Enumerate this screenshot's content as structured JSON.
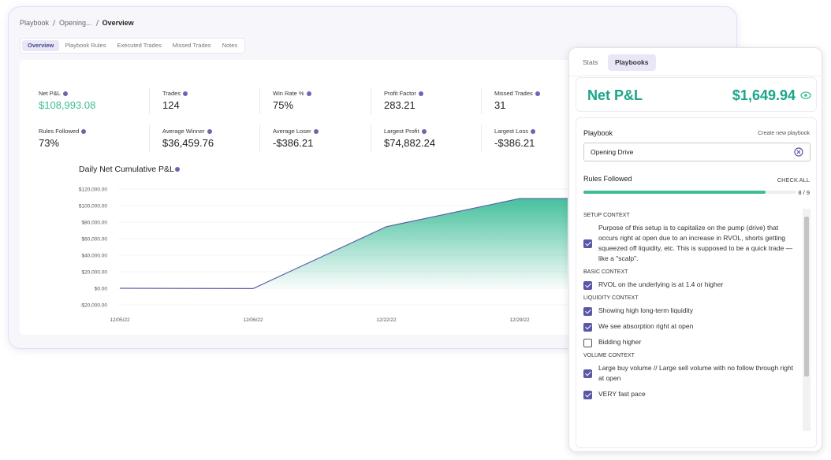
{
  "breadcrumb": [
    "Playbook",
    "Opening...",
    "Overview"
  ],
  "tabs": [
    "Overview",
    "Playbook Rules",
    "Executed Trades",
    "Missed Trades",
    "Notes"
  ],
  "stats": [
    {
      "label": "Net P&L",
      "value": "$108,993.08"
    },
    {
      "label": "Trades",
      "value": "124"
    },
    {
      "label": "Win Rate %",
      "value": "75%"
    },
    {
      "label": "Profit Factor",
      "value": "283.21"
    },
    {
      "label": "Missed Trades",
      "value": "31"
    },
    {
      "label": "Rules Followed",
      "value": "73%"
    },
    {
      "label": "Average Winner",
      "value": "$36,459.76"
    },
    {
      "label": "Average Loser",
      "value": "-$386.21"
    },
    {
      "label": "Largest Profit",
      "value": "$74,882.24"
    },
    {
      "label": "Largest Loss",
      "value": "-$386.21"
    }
  ],
  "chart_data": {
    "type": "area",
    "title": "Daily Net Cumulative P&L",
    "categories": [
      "12/05/22",
      "12/06/22",
      "12/22/22",
      "12/29/22"
    ],
    "values": [
      0,
      -386.21,
      74500,
      108500
    ],
    "color": "#5c5fa8",
    "fill_color": "#3dbd98",
    "ylim": [
      -20000,
      120000
    ],
    "yticks": [
      {
        "value": 120000,
        "label": "$120,000.00"
      },
      {
        "value": 100000,
        "label": "$100,000.00"
      },
      {
        "value": 80000,
        "label": "$80,000.00"
      },
      {
        "value": 60000,
        "label": "$60,000.00"
      },
      {
        "value": 40000,
        "label": "$40,000.00"
      },
      {
        "value": 20000,
        "label": "$20,000.00"
      },
      {
        "value": 0,
        "label": "$0.00"
      },
      {
        "value": -20000,
        "label": "-$20,000.00"
      }
    ],
    "grid": true
  },
  "side_panel": {
    "tabs": [
      "Stats",
      "Playbooks"
    ],
    "net_pnl": {
      "label": "Net P&L",
      "value": "$1,649.94"
    },
    "playbook_label": "Playbook",
    "create_link": "Create new playbook",
    "selected_playbook": "Opening Drive",
    "rules_label": "Rules Followed",
    "check_all": "CHECK ALL",
    "progress": "8 / 9",
    "sections": [
      {
        "title": "SETUP CONTEXT",
        "rules": [
          {
            "text": "Purpose of this setup is to capitalize on the pump (drive) that occurs right at open due to an increase in RVOL, shorts getting squeezed off liquidity, etc. This is supposed to be a quick trade — like a \"scalp\".",
            "checked": true
          }
        ]
      },
      {
        "title": "BASIC CONTEXT",
        "rules": [
          {
            "text": "RVOL on the underlying is at 1.4 or higher",
            "checked": true
          }
        ]
      },
      {
        "title": "LIQUIDITY CONTEXT",
        "rules": [
          {
            "text": "Showing high long-term liquidity",
            "checked": true
          },
          {
            "text": "We see absorption right at open",
            "checked": true
          },
          {
            "text": "Bidding higher",
            "checked": false
          }
        ]
      },
      {
        "title": "VOLUME CONTEXT",
        "rules": [
          {
            "text": "Large buy volume // Large sell volume with no follow through right at open",
            "checked": true
          },
          {
            "text": "VERY fast pace",
            "checked": true
          }
        ]
      }
    ]
  }
}
